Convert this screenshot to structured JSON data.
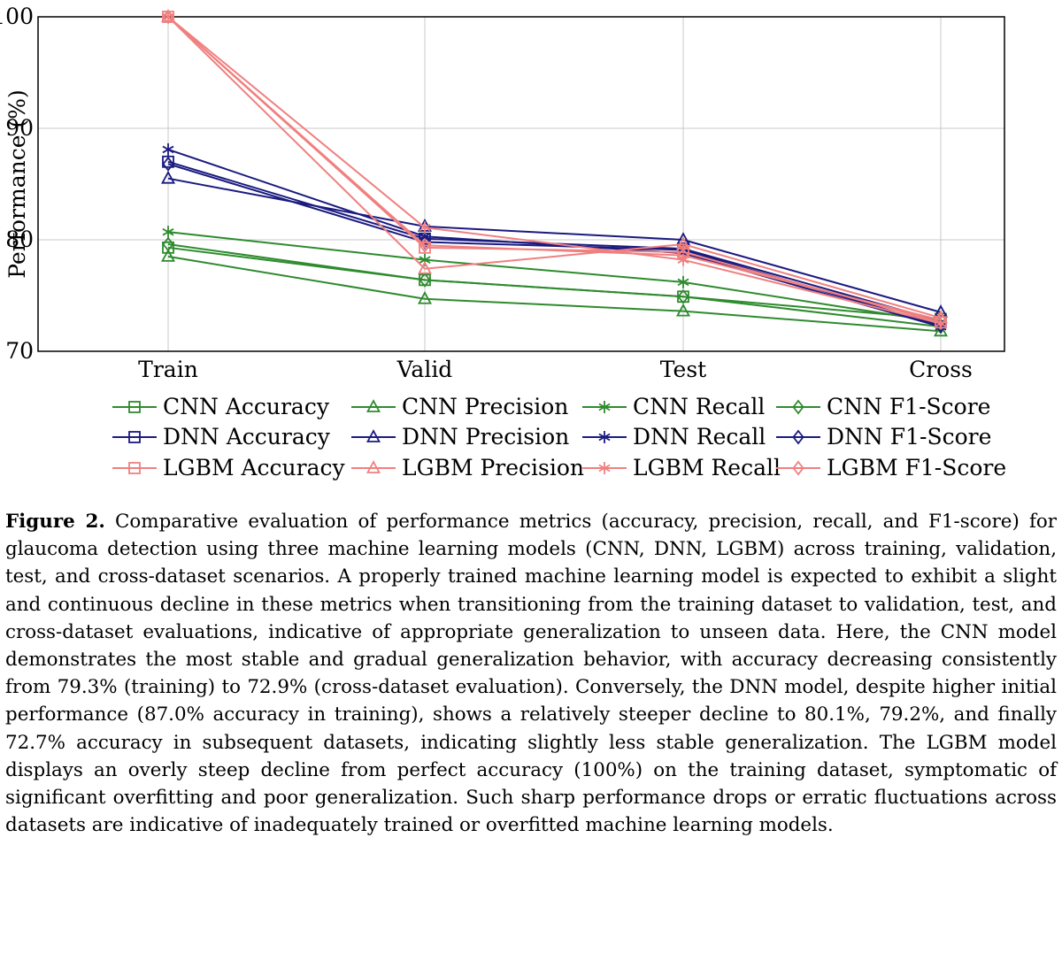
{
  "chart_data": {
    "type": "line",
    "title": "",
    "categories": [
      "Train",
      "Valid",
      "Test",
      "Cross"
    ],
    "xlabel": "",
    "ylabel": "Performance (%)",
    "ylim": [
      70,
      100
    ],
    "yticks": [
      70,
      80,
      90,
      100
    ],
    "grid": true,
    "legend_position": "bottom",
    "colors": {
      "CNN": "#2e8b2e",
      "DNN": "#1a1a80",
      "LGBM": "#f08080"
    },
    "series": [
      {
        "name": "CNN Accuracy",
        "model": "CNN",
        "marker": "square",
        "values": [
          79.3,
          76.4,
          74.9,
          72.9
        ]
      },
      {
        "name": "CNN Precision",
        "model": "CNN",
        "marker": "triangle",
        "values": [
          78.5,
          74.7,
          73.6,
          71.8
        ]
      },
      {
        "name": "CNN Recall",
        "model": "CNN",
        "marker": "star",
        "values": [
          80.7,
          78.2,
          76.2,
          72.6
        ]
      },
      {
        "name": "CNN F1-Score",
        "model": "CNN",
        "marker": "diamond",
        "values": [
          79.6,
          76.4,
          74.9,
          72.2
        ]
      },
      {
        "name": "DNN Accuracy",
        "model": "DNN",
        "marker": "square",
        "values": [
          87.0,
          80.1,
          79.2,
          72.7
        ]
      },
      {
        "name": "DNN Precision",
        "model": "DNN",
        "marker": "triangle",
        "values": [
          85.5,
          81.2,
          80.0,
          73.5
        ]
      },
      {
        "name": "DNN Recall",
        "model": "DNN",
        "marker": "star",
        "values": [
          88.1,
          80.3,
          78.8,
          72.2
        ]
      },
      {
        "name": "DNN F1-Score",
        "model": "DNN",
        "marker": "diamond",
        "values": [
          86.8,
          79.8,
          79.1,
          72.3
        ]
      },
      {
        "name": "LGBM Accuracy",
        "model": "LGBM",
        "marker": "square",
        "values": [
          100,
          79.3,
          78.9,
          72.6
        ]
      },
      {
        "name": "LGBM Precision",
        "model": "LGBM",
        "marker": "triangle",
        "values": [
          100,
          77.4,
          79.6,
          73.0
        ]
      },
      {
        "name": "LGBM Recall",
        "model": "LGBM",
        "marker": "star",
        "values": [
          100,
          81.1,
          78.2,
          72.5
        ]
      },
      {
        "name": "LGBM F1-Score",
        "model": "LGBM",
        "marker": "diamond",
        "values": [
          100,
          79.5,
          78.6,
          72.8
        ]
      }
    ]
  },
  "caption": {
    "label": "Figure 2.",
    "text": " Comparative evaluation of performance metrics (accuracy, precision, recall, and F1-score) for glaucoma detection using three machine learning models (CNN, DNN, LGBM) across training, validation, test, and cross-dataset scenarios. A properly trained machine learning model is expected to exhibit a slight and continuous decline in these metrics when transitioning from the training dataset to validation, test, and cross-dataset evaluations, indicative of appropriate generalization to unseen data. Here, the CNN model demonstrates the most stable and gradual generalization behavior, with accuracy decreasing consistently from 79.3% (training) to 72.9% (cross-dataset evaluation). Conversely, the DNN model, despite higher initial performance (87.0% accuracy in training), shows a relatively steeper decline to 80.1%, 79.2%, and finally 72.7% accuracy in subsequent datasets, indicating slightly less stable generalization. The LGBM model displays an overly steep decline from perfect accuracy (100%) on the training dataset, symptomatic of significant overfitting and poor generalization. Such sharp performance drops or erratic fluctuations across datasets are indicative of inadequately trained or overfitted machine learning models."
  }
}
